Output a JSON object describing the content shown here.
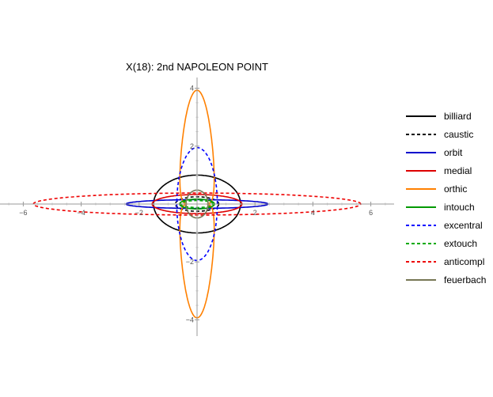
{
  "chart_data": {
    "type": "line",
    "title": "X(18): 2nd NAPOLEON POINT",
    "xlabel": "",
    "ylabel": "",
    "xlim": [
      -7.0,
      6.8
    ],
    "ylim": [
      -4.5,
      4.4
    ],
    "x_ticks": [
      -6,
      -4,
      -2,
      2,
      4,
      6
    ],
    "y_ticks": [
      -4,
      -2,
      2,
      4
    ],
    "x_tick_labels": [
      "−6",
      "−4",
      "−2",
      "2",
      "4",
      "6"
    ],
    "y_tick_labels": [
      "−4",
      "−2",
      "2",
      "4"
    ],
    "grid": false,
    "legend_position": "right",
    "series": [
      {
        "name": "billiard",
        "color": "#000000",
        "dash": "solid",
        "shape": "ellipse",
        "a": 1.5,
        "b": 1.0,
        "cx": 0,
        "cy": 0
      },
      {
        "name": "caustic",
        "color": "#000000",
        "dash": "dashed",
        "shape": "ellipse",
        "a": 0.75,
        "b": 0.25,
        "cx": 0,
        "cy": 0
      },
      {
        "name": "orbit",
        "color": "#0000cc",
        "dash": "solid",
        "shape": "ellipse",
        "a": 2.45,
        "b": 0.15,
        "cx": 0,
        "cy": 0
      },
      {
        "name": "medial",
        "color": "#dd0000",
        "dash": "solid",
        "shape": "ellipse",
        "a": 1.55,
        "b": 0.33,
        "cx": 0,
        "cy": 0
      },
      {
        "name": "orthic",
        "color": "#ff8000",
        "dash": "solid",
        "shape": "astroid",
        "a": 1.0,
        "b": 3.75,
        "cx": 0,
        "cy": 0
      },
      {
        "name": "intouch",
        "color": "#009900",
        "dash": "solid",
        "shape": "ellipse",
        "a": 0.6,
        "b": 0.17,
        "cx": 0,
        "cy": 0
      },
      {
        "name": "excentral",
        "color": "#0000ff",
        "dash": "dashed",
        "shape": "ellipse",
        "a": 0.7,
        "b": 1.95,
        "cx": 0,
        "cy": 0
      },
      {
        "name": "extouch",
        "color": "#00aa00",
        "dash": "dashed",
        "shape": "ellipse",
        "a": 0.55,
        "b": 0.12,
        "cx": 0,
        "cy": 0
      },
      {
        "name": "anticompl",
        "color": "#ee0000",
        "dash": "dashed",
        "shape": "ellipse",
        "a": 5.65,
        "b": 0.38,
        "cx": 0,
        "cy": 0
      },
      {
        "name": "feuerbach",
        "color": "#777755",
        "dash": "solid",
        "shape": "ellipse",
        "a": 0.38,
        "b": 0.48,
        "cx": 0,
        "cy": 0
      }
    ]
  }
}
